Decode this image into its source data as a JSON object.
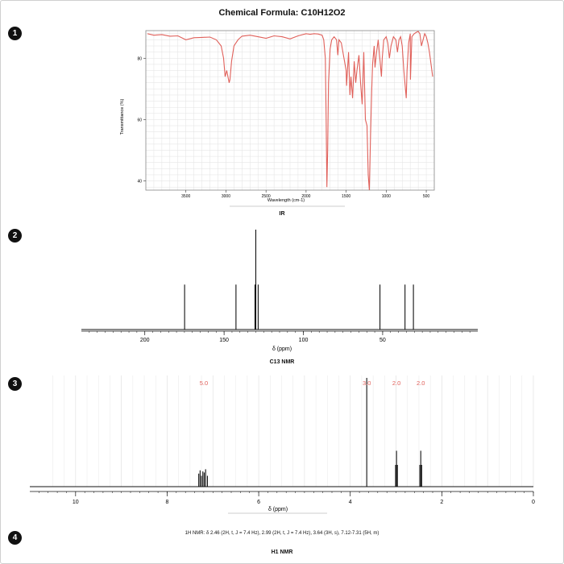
{
  "title": "Chemical Formula: C10H12O2",
  "badges": [
    "1",
    "2",
    "3",
    "4"
  ],
  "labels": {
    "ir": "IR",
    "c13": "C13 NMR",
    "h1": "H1 NMR"
  },
  "h1_text": "1H NMR: δ 2.46 (2H, t, J = 7.4 Hz), 2.99 (2H, t, J = 7.4 Hz), 3.64 (3H, s), 7.12-7.31 (5H, m)",
  "colors": {
    "ir_line": "#e0605a",
    "integration": "#e0605a",
    "grid": "#e2e2e2",
    "spectrum": "#111111"
  },
  "chart_data": [
    {
      "type": "line",
      "name": "IR",
      "xlabel": "Wavelength (cm-1)",
      "ylabel": "Transmittance (%)",
      "xlim": [
        4000,
        400
      ],
      "ylim": [
        37,
        89
      ],
      "xticks": [
        3500,
        3000,
        2500,
        2000,
        1500,
        1000,
        500
      ],
      "yticks": [
        40,
        60,
        80
      ],
      "x": [
        3980,
        3900,
        3800,
        3700,
        3600,
        3500,
        3400,
        3300,
        3200,
        3120,
        3060,
        3030,
        3010,
        2990,
        2960,
        2950,
        2930,
        2900,
        2850,
        2800,
        2700,
        2600,
        2500,
        2400,
        2300,
        2200,
        2100,
        2000,
        1950,
        1900,
        1850,
        1800,
        1780,
        1760,
        1750,
        1740,
        1730,
        1720,
        1700,
        1680,
        1650,
        1620,
        1604,
        1590,
        1560,
        1500,
        1495,
        1470,
        1453,
        1440,
        1420,
        1400,
        1380,
        1365,
        1340,
        1320,
        1300,
        1280,
        1260,
        1240,
        1225,
        1210,
        1195,
        1180,
        1170,
        1150,
        1140,
        1120,
        1100,
        1080,
        1060,
        1050,
        1030,
        1000,
        980,
        960,
        940,
        910,
        880,
        860,
        840,
        820,
        800,
        780,
        760,
        750,
        740,
        720,
        700,
        698,
        680,
        650,
        620,
        600,
        580,
        560,
        540,
        520,
        500,
        480,
        460,
        440,
        420
      ],
      "y": [
        88,
        87.5,
        87.7,
        87.2,
        87.3,
        86,
        86.7,
        86.8,
        86.9,
        86,
        84,
        80,
        74,
        76,
        72,
        73,
        79,
        84,
        86,
        87.2,
        87.5,
        87,
        86.5,
        87.3,
        87,
        86.3,
        87.3,
        88,
        87.8,
        88,
        87.9,
        87.5,
        86,
        80,
        60,
        38,
        50,
        72,
        83,
        86,
        87,
        86,
        81,
        86,
        85,
        76,
        71,
        82,
        68,
        74,
        67,
        79,
        72,
        76,
        81,
        72,
        65,
        82,
        60,
        58,
        42,
        37,
        55,
        70,
        78,
        84,
        77,
        82,
        86,
        80,
        74,
        80,
        86,
        87,
        85,
        80,
        84,
        87,
        86,
        82,
        86,
        87,
        84,
        76,
        70,
        67,
        76,
        85,
        88,
        73,
        87,
        88,
        88.5,
        88.7,
        88,
        84,
        86,
        88,
        87,
        85,
        82,
        78,
        74
      ]
    },
    {
      "type": "line",
      "name": "C13 NMR",
      "xlabel": "δ (ppm)",
      "xlim": [
        240,
        -10
      ],
      "xticks": [
        200,
        150,
        100,
        50
      ],
      "peaks": [
        {
          "shift": 174.9,
          "intensity": 0.45
        },
        {
          "shift": 142.5,
          "intensity": 0.45
        },
        {
          "shift": 130.5,
          "intensity": 0.45
        },
        {
          "shift": 130.0,
          "intensity": 1.0
        },
        {
          "shift": 128.5,
          "intensity": 0.45
        },
        {
          "shift": 51.7,
          "intensity": 0.45
        },
        {
          "shift": 35.9,
          "intensity": 0.45
        },
        {
          "shift": 30.6,
          "intensity": 0.45
        }
      ]
    },
    {
      "type": "line",
      "name": "H1 NMR",
      "xlabel": "δ (ppm)",
      "xlim": [
        11,
        0
      ],
      "xticks": [
        10,
        8,
        6,
        4,
        2,
        0
      ],
      "peaks": [
        {
          "shift": 7.31,
          "intensity": 0.12
        },
        {
          "shift": 7.28,
          "intensity": 0.15
        },
        {
          "shift": 7.25,
          "intensity": 0.1
        },
        {
          "shift": 7.22,
          "intensity": 0.14
        },
        {
          "shift": 7.19,
          "intensity": 0.13
        },
        {
          "shift": 7.16,
          "intensity": 0.16
        },
        {
          "shift": 7.12,
          "intensity": 0.1
        },
        {
          "shift": 3.64,
          "intensity": 1.0
        },
        {
          "shift": 3.01,
          "intensity": 0.2
        },
        {
          "shift": 2.99,
          "intensity": 0.33
        },
        {
          "shift": 2.97,
          "intensity": 0.2
        },
        {
          "shift": 2.48,
          "intensity": 0.2
        },
        {
          "shift": 2.46,
          "intensity": 0.33
        },
        {
          "shift": 2.44,
          "intensity": 0.2
        }
      ],
      "integrations": [
        {
          "label": "5.0",
          "shift": 7.2
        },
        {
          "label": "3.0",
          "shift": 3.64
        },
        {
          "label": "2.0",
          "shift": 2.99
        },
        {
          "label": "2.0",
          "shift": 2.46
        }
      ]
    }
  ]
}
